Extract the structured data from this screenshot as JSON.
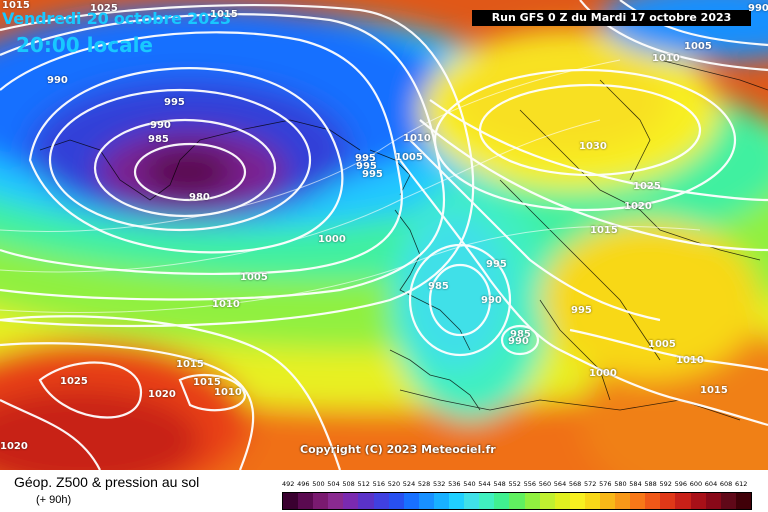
{
  "header": {
    "valid_date": "Vendredi 20 octobre 2023",
    "local_time": "20:00 locale",
    "run_info": "Run GFS 0 Z du Mardi 17 octobre 2023"
  },
  "map": {
    "copyright": "Copyright (C) 2023 Meteociel.fr",
    "isobar_labels": [
      {
        "id": "iso-1015-tl",
        "text": "1015"
      },
      {
        "id": "iso-1025-top",
        "text": "1025"
      },
      {
        "id": "iso-1015-top",
        "text": "1015"
      },
      {
        "id": "iso-990-left",
        "text": "990"
      },
      {
        "id": "iso-995-a",
        "text": "995"
      },
      {
        "id": "iso-990-b",
        "text": "990"
      },
      {
        "id": "iso-985",
        "text": "985"
      },
      {
        "id": "iso-980",
        "text": "980"
      },
      {
        "id": "iso-995-c",
        "text": "995"
      },
      {
        "id": "iso-995-d",
        "text": "995"
      },
      {
        "id": "iso-995-e",
        "text": "995"
      },
      {
        "id": "iso-1005-mid",
        "text": "1005"
      },
      {
        "id": "iso-1010-mid",
        "text": "1010"
      },
      {
        "id": "iso-1000",
        "text": "1000"
      },
      {
        "id": "iso-1005-w",
        "text": "1005"
      },
      {
        "id": "iso-1010-w",
        "text": "1010"
      },
      {
        "id": "iso-1015-sw",
        "text": "1015"
      },
      {
        "id": "iso-1015-sw2",
        "text": "1015"
      },
      {
        "id": "iso-1010-sw",
        "text": "1010"
      },
      {
        "id": "iso-1020-sw",
        "text": "1020"
      },
      {
        "id": "iso-1025-sw",
        "text": "1025"
      },
      {
        "id": "iso-1020-bl",
        "text": "1020"
      },
      {
        "id": "iso-985-uk",
        "text": "985"
      },
      {
        "id": "iso-995-uk",
        "text": "995"
      },
      {
        "id": "iso-990-uk",
        "text": "990"
      },
      {
        "id": "iso-985-fr",
        "text": "985"
      },
      {
        "id": "iso-990-fr",
        "text": "990"
      },
      {
        "id": "iso-995-eu",
        "text": "995"
      },
      {
        "id": "iso-1000-med",
        "text": "1000"
      },
      {
        "id": "iso-1005-e",
        "text": "1005"
      },
      {
        "id": "iso-1010-e",
        "text": "1010"
      },
      {
        "id": "iso-1015-e",
        "text": "1015"
      },
      {
        "id": "iso-1015-se",
        "text": "1015"
      },
      {
        "id": "iso-1030",
        "text": "1030"
      },
      {
        "id": "iso-1025-scan",
        "text": "1025"
      },
      {
        "id": "iso-1020-scan",
        "text": "1020"
      },
      {
        "id": "iso-1010-ne",
        "text": "1010"
      },
      {
        "id": "iso-1005-ne",
        "text": "1005"
      },
      {
        "id": "iso-990-ne",
        "text": "990"
      }
    ]
  },
  "legend": {
    "title": "Géop. Z500 & pression au sol",
    "subtitle": "(+ 90h)",
    "scale_labels": [
      "492",
      "496",
      "500",
      "504",
      "508",
      "512",
      "516",
      "520",
      "524",
      "528",
      "532",
      "536",
      "540",
      "544",
      "548",
      "552",
      "556",
      "560",
      "564",
      "568",
      "572",
      "576",
      "580",
      "584",
      "588",
      "592",
      "596",
      "600",
      "604",
      "608",
      "612"
    ],
    "scale_colors": [
      "#3a0030",
      "#5a0a50",
      "#7a1a70",
      "#8a2a90",
      "#7a2ab0",
      "#5a32c8",
      "#4040e0",
      "#2850f0",
      "#1870ff",
      "#1890ff",
      "#18b0ff",
      "#20d0ff",
      "#40e0e8",
      "#40f0c0",
      "#40f090",
      "#60f060",
      "#90f040",
      "#c0f030",
      "#e0f020",
      "#f8f020",
      "#f8d818",
      "#f8b818",
      "#f89818",
      "#f87818",
      "#f05818",
      "#e03818",
      "#c82018",
      "#a81018",
      "#880818",
      "#600818",
      "#400008"
    ]
  }
}
